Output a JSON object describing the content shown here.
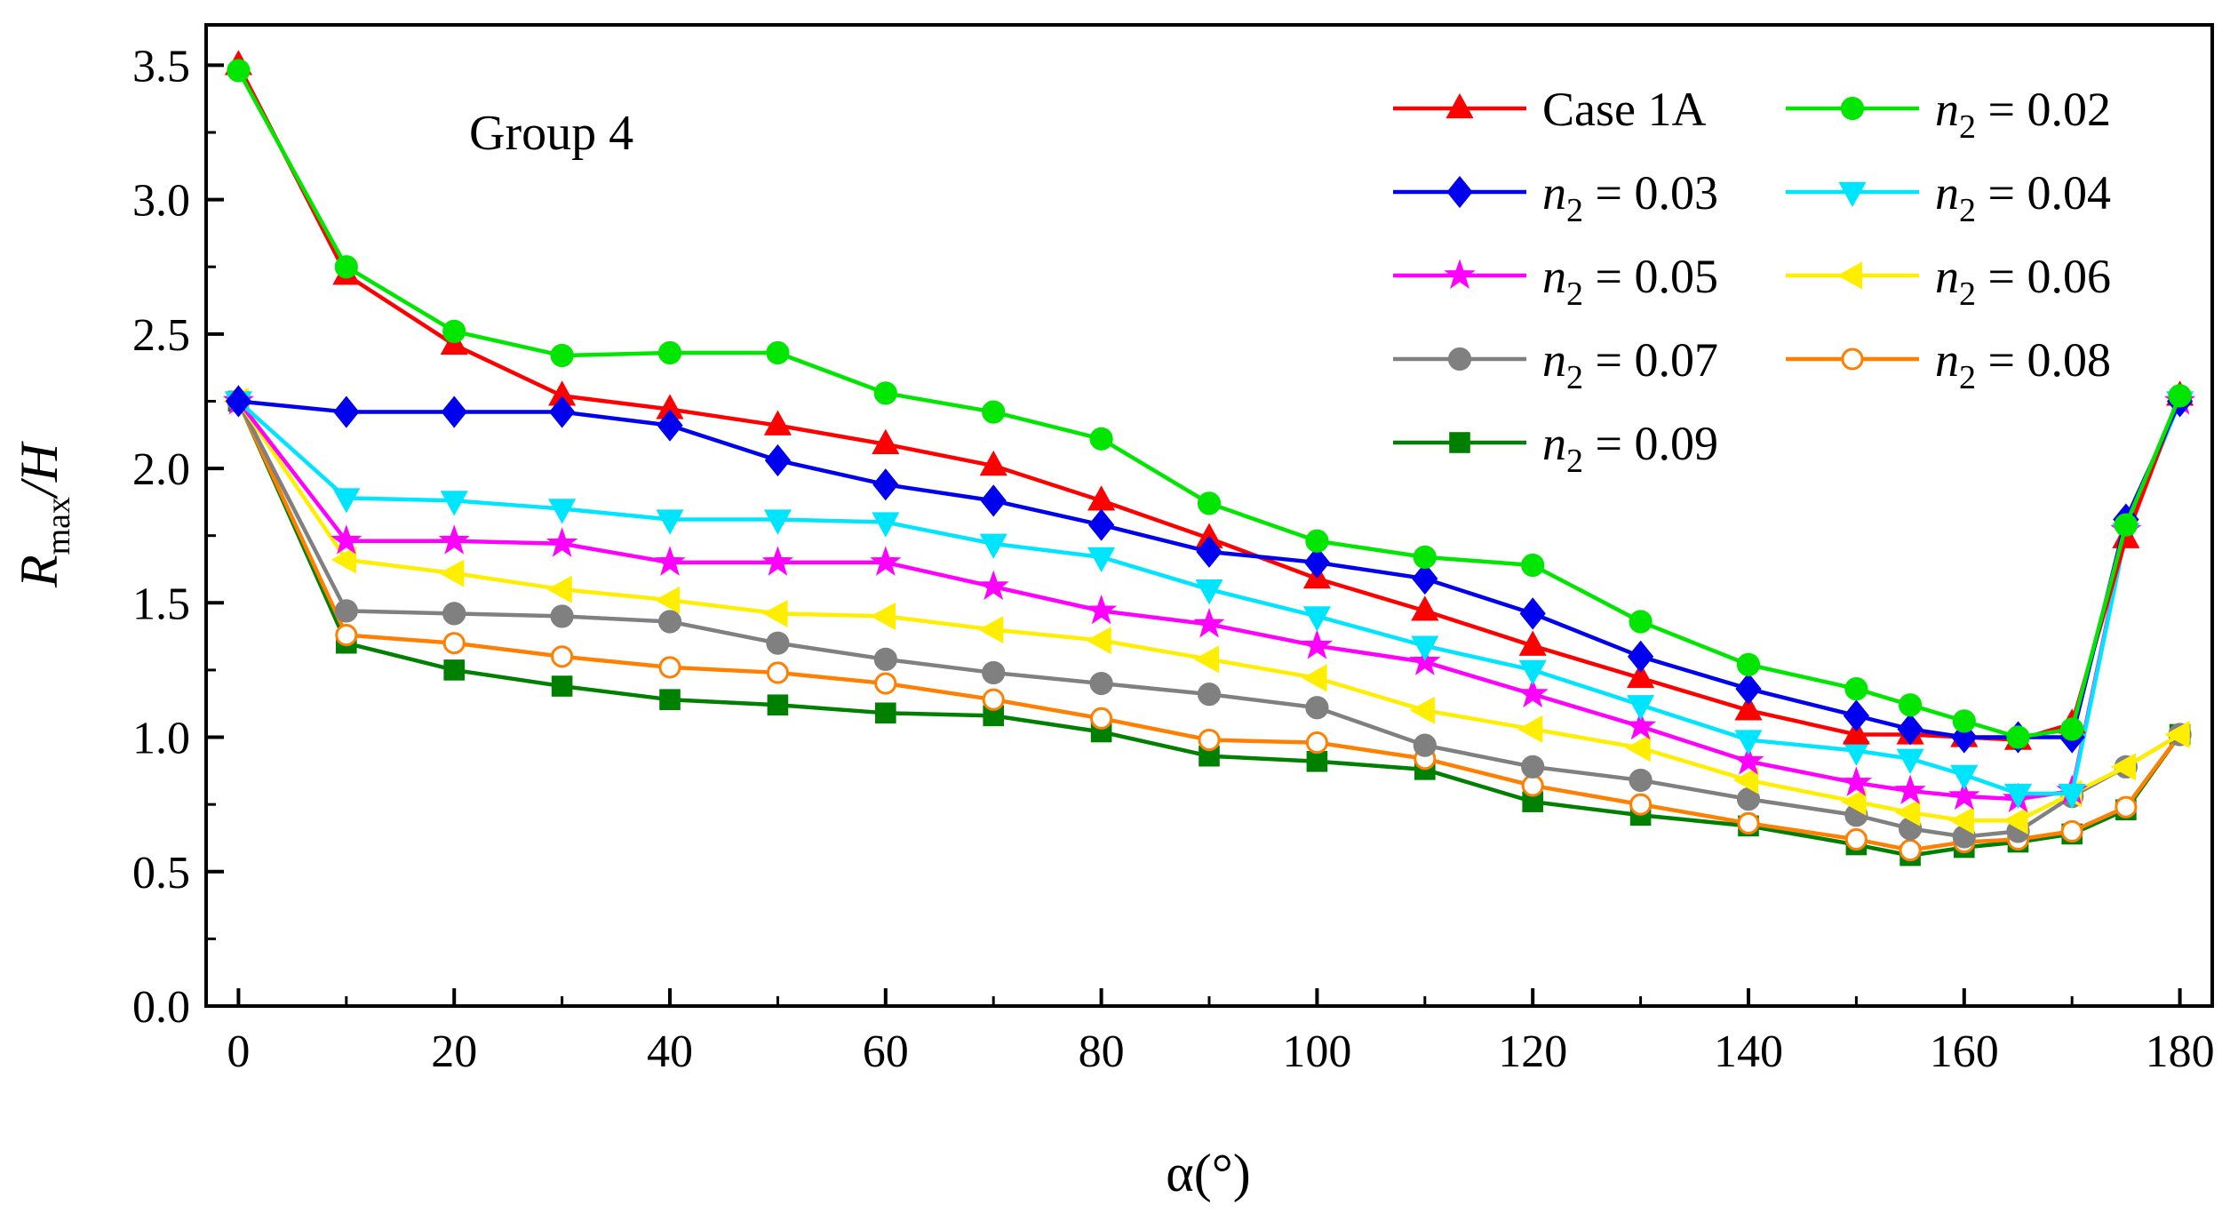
{
  "chart_data": {
    "type": "line",
    "title": "",
    "annotation": "Group 4",
    "xlabel": "α(°)",
    "ylabel": {
      "main": "R",
      "sub": "max",
      "rest": "/H"
    },
    "xlim": [
      -3,
      183
    ],
    "ylim": [
      0,
      3.65
    ],
    "xticks": [
      0,
      20,
      40,
      60,
      80,
      100,
      120,
      140,
      160,
      180
    ],
    "yticks": [
      0.0,
      0.5,
      1.0,
      1.5,
      2.0,
      2.5,
      3.0,
      3.5
    ],
    "yticks_labels": [
      "0.0",
      "0.5",
      "1.0",
      "1.5",
      "2.0",
      "2.5",
      "3.0",
      "3.5"
    ],
    "x": [
      0,
      10,
      20,
      30,
      40,
      50,
      60,
      70,
      80,
      90,
      100,
      110,
      120,
      130,
      140,
      150,
      155,
      160,
      165,
      170,
      175,
      180
    ],
    "series": [
      {
        "name": "Case 1A",
        "label_parts": [
          "Case 1A"
        ],
        "color": "#ff0000",
        "marker": "triangle-up",
        "values": [
          3.5,
          2.72,
          2.46,
          2.27,
          2.22,
          2.16,
          2.09,
          2.01,
          1.88,
          1.74,
          1.59,
          1.47,
          1.34,
          1.22,
          1.1,
          1.01,
          1.01,
          1.0,
          0.99,
          1.05,
          1.74,
          2.27
        ]
      },
      {
        "name": "n2 = 0.02",
        "label_parts": [
          "n",
          "2",
          " = 0.02"
        ],
        "color": "#00e600",
        "marker": "circle",
        "values": [
          3.48,
          2.75,
          2.51,
          2.42,
          2.43,
          2.43,
          2.28,
          2.21,
          2.11,
          1.87,
          1.73,
          1.67,
          1.64,
          1.43,
          1.27,
          1.18,
          1.12,
          1.06,
          1.0,
          1.03,
          1.79,
          2.27
        ]
      },
      {
        "name": "n2 = 0.03",
        "label_parts": [
          "n",
          "2",
          " = 0.03"
        ],
        "color": "#0000ee",
        "marker": "diamond",
        "values": [
          2.25,
          2.21,
          2.21,
          2.21,
          2.16,
          2.03,
          1.94,
          1.88,
          1.79,
          1.69,
          1.65,
          1.59,
          1.46,
          1.3,
          1.18,
          1.08,
          1.03,
          1.0,
          1.0,
          1.0,
          1.81,
          2.25
        ]
      },
      {
        "name": "n2 = 0.04",
        "label_parts": [
          "n",
          "2",
          " = 0.04"
        ],
        "color": "#00e5ff",
        "marker": "triangle-down",
        "values": [
          2.25,
          1.89,
          1.88,
          1.85,
          1.81,
          1.81,
          1.8,
          1.72,
          1.67,
          1.55,
          1.45,
          1.34,
          1.25,
          1.12,
          0.99,
          0.95,
          0.92,
          0.86,
          0.79,
          0.79,
          1.76,
          2.25
        ]
      },
      {
        "name": "n2 = 0.05",
        "label_parts": [
          "n",
          "2",
          " = 0.05"
        ],
        "color": "#ff00ff",
        "marker": "star",
        "values": [
          2.25,
          1.73,
          1.73,
          1.72,
          1.65,
          1.65,
          1.65,
          1.56,
          1.47,
          1.42,
          1.34,
          1.28,
          1.16,
          1.04,
          0.91,
          0.83,
          0.8,
          0.78,
          0.77,
          0.8,
          1.77,
          2.25
        ]
      },
      {
        "name": "n2 = 0.06",
        "label_parts": [
          "n",
          "2",
          " = 0.06"
        ],
        "color": "#ffee00",
        "marker": "triangle-left",
        "values": [
          2.25,
          1.66,
          1.61,
          1.55,
          1.51,
          1.46,
          1.45,
          1.4,
          1.36,
          1.29,
          1.22,
          1.1,
          1.03,
          0.96,
          0.84,
          0.76,
          0.72,
          0.69,
          0.69,
          0.79,
          0.89,
          1.01
        ]
      },
      {
        "name": "n2 = 0.07",
        "label_parts": [
          "n",
          "2",
          " = 0.07"
        ],
        "color": "#808080",
        "marker": "circle",
        "values": [
          2.25,
          1.47,
          1.46,
          1.45,
          1.43,
          1.35,
          1.29,
          1.24,
          1.2,
          1.16,
          1.11,
          0.97,
          0.89,
          0.84,
          0.77,
          0.71,
          0.66,
          0.63,
          0.65,
          0.78,
          0.89,
          1.01
        ]
      },
      {
        "name": "n2 = 0.08",
        "label_parts": [
          "n",
          "2",
          " = 0.08"
        ],
        "color": "#ff7f00",
        "marker": "circle-open",
        "values": [
          2.25,
          1.38,
          1.35,
          1.3,
          1.26,
          1.24,
          1.2,
          1.14,
          1.07,
          0.99,
          0.98,
          0.92,
          0.82,
          0.75,
          0.68,
          0.62,
          0.58,
          0.61,
          0.62,
          0.65,
          0.74,
          1.01
        ]
      },
      {
        "name": "n2 = 0.09",
        "label_parts": [
          "n",
          "2",
          " = 0.09"
        ],
        "color": "#008000",
        "marker": "square",
        "values": [
          2.25,
          1.35,
          1.25,
          1.19,
          1.14,
          1.12,
          1.09,
          1.08,
          1.02,
          0.93,
          0.91,
          0.88,
          0.76,
          0.71,
          0.67,
          0.6,
          0.56,
          0.59,
          0.61,
          0.64,
          0.73,
          1.01
        ]
      }
    ],
    "legend": {
      "placement": "top-right",
      "columns": 2
    }
  }
}
